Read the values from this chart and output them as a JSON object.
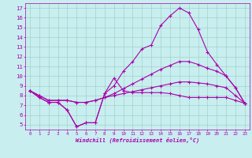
{
  "xlabel": "Windchill (Refroidissement éolien,°C)",
  "xlim": [
    -0.5,
    23.5
  ],
  "ylim": [
    4.5,
    17.5
  ],
  "yticks": [
    5,
    6,
    7,
    8,
    9,
    10,
    11,
    12,
    13,
    14,
    15,
    16,
    17
  ],
  "xticks": [
    0,
    1,
    2,
    3,
    4,
    5,
    6,
    7,
    8,
    9,
    10,
    11,
    12,
    13,
    14,
    15,
    16,
    17,
    18,
    19,
    20,
    21,
    22,
    23
  ],
  "background_color": "#c8eef0",
  "line_color": "#aa00aa",
  "grid_color": "#99ccbb",
  "lines": [
    [
      8.5,
      7.8,
      7.3,
      7.3,
      6.5,
      4.8,
      5.2,
      5.2,
      8.2,
      9.8,
      8.5,
      8.3,
      8.3,
      8.3,
      8.3,
      8.2,
      8.0,
      7.8,
      7.8,
      7.8,
      7.8,
      7.8,
      7.5,
      7.2
    ],
    [
      8.5,
      7.8,
      7.3,
      7.3,
      6.5,
      4.8,
      5.2,
      5.2,
      8.2,
      9.0,
      10.5,
      11.5,
      12.8,
      13.2,
      15.2,
      16.2,
      17.0,
      16.5,
      14.8,
      12.5,
      11.2,
      10.0,
      8.8,
      7.2
    ],
    [
      8.5,
      8.0,
      7.5,
      7.5,
      7.5,
      7.3,
      7.3,
      7.5,
      7.8,
      8.2,
      8.7,
      9.2,
      9.7,
      10.2,
      10.7,
      11.1,
      11.5,
      11.5,
      11.2,
      10.8,
      10.5,
      10.0,
      8.8,
      7.2
    ],
    [
      8.5,
      8.0,
      7.5,
      7.5,
      7.5,
      7.3,
      7.3,
      7.5,
      7.8,
      8.0,
      8.2,
      8.4,
      8.6,
      8.8,
      9.0,
      9.2,
      9.4,
      9.4,
      9.3,
      9.2,
      9.0,
      8.8,
      8.0,
      7.2
    ]
  ]
}
